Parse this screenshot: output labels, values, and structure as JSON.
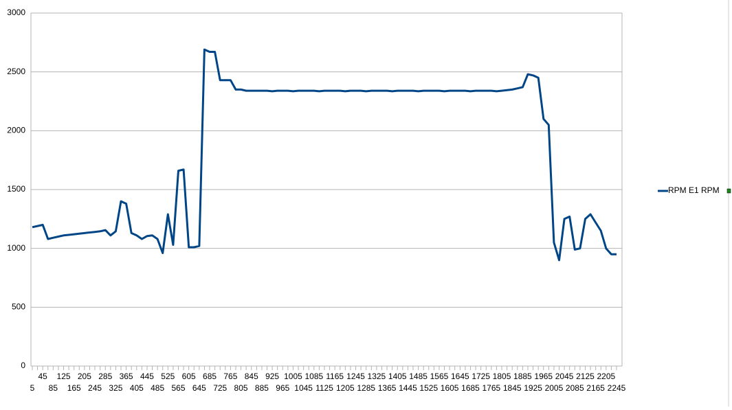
{
  "chart_data": {
    "type": "line",
    "categories": [
      "5",
      null,
      "45",
      null,
      "85",
      null,
      "125",
      null,
      "165",
      null,
      "205",
      null,
      "245",
      null,
      "285",
      null,
      "325",
      null,
      "365",
      null,
      "405",
      null,
      "445",
      null,
      "485",
      null,
      "525",
      null,
      "565",
      null,
      "605",
      null,
      "645",
      null,
      "685",
      null,
      "725",
      null,
      "765",
      null,
      "805",
      null,
      "845",
      null,
      "885",
      null,
      "925",
      null,
      "965",
      null,
      "1005",
      null,
      "1045",
      null,
      "1085",
      null,
      "1125",
      null,
      "1165",
      null,
      "1205",
      null,
      "1245",
      null,
      "1285",
      null,
      "1325",
      null,
      "1365",
      null,
      "1405",
      null,
      "1445",
      null,
      "1485",
      null,
      "1525",
      null,
      "1565",
      null,
      "1605",
      null,
      "1645",
      null,
      "1685",
      null,
      "1725",
      null,
      "1765",
      null,
      "1805",
      null,
      "1845",
      null,
      "1885",
      null,
      "1925",
      null,
      "1965",
      null,
      "2005",
      null,
      "2045",
      null,
      "2085",
      null,
      "2125",
      null,
      "2165",
      null,
      "2205",
      null,
      "2245"
    ],
    "series": [
      {
        "name": "RPM E1 RPM",
        "color": "#004586",
        "values": [
          1180,
          1190,
          1200,
          1080,
          1090,
          1100,
          1110,
          1115,
          1120,
          1125,
          1130,
          1135,
          1140,
          1145,
          1155,
          1110,
          1145,
          1400,
          1380,
          1130,
          1110,
          1080,
          1105,
          1110,
          1080,
          960,
          1290,
          1030,
          1660,
          1670,
          1010,
          1010,
          1020,
          2690,
          2670,
          2670,
          2430,
          2430,
          2430,
          2350,
          2350,
          2340,
          2340,
          2340,
          2340,
          2340,
          2335,
          2340,
          2340,
          2340,
          2335,
          2340,
          2340,
          2340,
          2340,
          2335,
          2340,
          2340,
          2340,
          2340,
          2335,
          2340,
          2340,
          2340,
          2335,
          2340,
          2340,
          2340,
          2340,
          2335,
          2340,
          2340,
          2340,
          2340,
          2335,
          2340,
          2340,
          2340,
          2340,
          2335,
          2340,
          2340,
          2340,
          2340,
          2335,
          2340,
          2340,
          2340,
          2340,
          2335,
          2340,
          2345,
          2350,
          2360,
          2370,
          2480,
          2470,
          2450,
          2100,
          2050,
          1050,
          900,
          1250,
          1270,
          990,
          1000,
          1250,
          1290,
          1220,
          1150,
          1000,
          950,
          950
        ]
      }
    ],
    "ylim": [
      0,
      3000
    ],
    "yticks": [
      0,
      500,
      1000,
      1500,
      2000,
      2500,
      3000
    ],
    "grid": true,
    "legend": "right"
  }
}
